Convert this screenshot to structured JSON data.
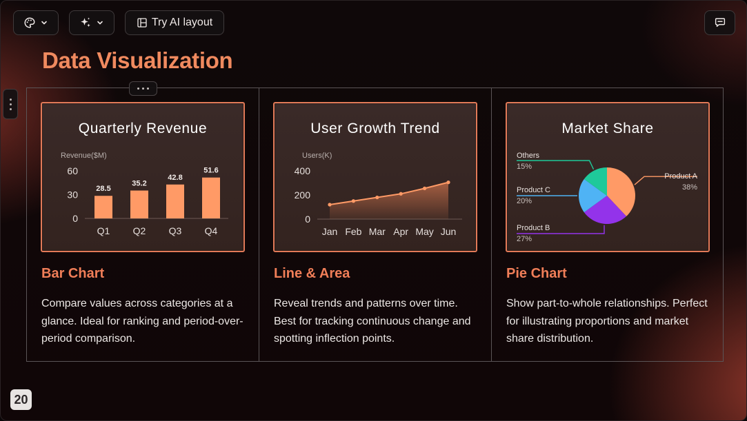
{
  "toolbar": {
    "theme_icon": "palette-icon",
    "magic_icon": "sparkle-icon",
    "ai_layout_label": "Try AI layout",
    "comments_icon": "comment-icon"
  },
  "slide": {
    "title": "Data Visualization",
    "page_number": "20"
  },
  "columns": [
    {
      "heading": "Bar Chart",
      "description": "Compare values across categories at a glance. Ideal for ranking and period-over-period comparison."
    },
    {
      "heading": "Line & Area",
      "description": "Reveal trends and patterns over time. Best for tracking continuous change and spotting inflection points."
    },
    {
      "heading": "Pie Chart",
      "description": "Show part-to-whole relationships. Perfect for illustrating proportions and market share distribution."
    }
  ],
  "colors": {
    "accent": "#f08a5f",
    "bar": "#ff9a66",
    "card_border": "#e27a58",
    "pie_product_a": "#ff9a66",
    "pie_product_b": "#9333ea",
    "pie_product_c": "#4fb3f5",
    "pie_others": "#1fc99a"
  },
  "chart_data": [
    {
      "type": "bar",
      "title": "Quarterly Revenue",
      "ylabel": "Revenue($M)",
      "categories": [
        "Q1",
        "Q2",
        "Q3",
        "Q4"
      ],
      "values": [
        28.5,
        35.2,
        42.8,
        51.6
      ],
      "ylim": [
        0,
        60
      ],
      "yticks": [
        "0",
        "30",
        "60"
      ],
      "data_labels": [
        "28.5",
        "35.2",
        "42.8",
        "51.6"
      ],
      "grid": false
    },
    {
      "type": "area",
      "title": "User Growth Trend",
      "ylabel": "Users(K)",
      "categories": [
        "Jan",
        "Feb",
        "Mar",
        "Apr",
        "May",
        "Jun"
      ],
      "values": [
        120,
        150,
        180,
        210,
        255,
        305
      ],
      "ylim": [
        0,
        400
      ],
      "yticks": [
        "0",
        "200",
        "400"
      ],
      "grid": false
    },
    {
      "type": "pie",
      "title": "Market Share",
      "slices": [
        {
          "name": "Product A",
          "label": "38%",
          "value": 38
        },
        {
          "name": "Product B",
          "label": "27%",
          "value": 27
        },
        {
          "name": "Product C",
          "label": "20%",
          "value": 20
        },
        {
          "name": "Others",
          "label": "15%",
          "value": 15
        }
      ]
    }
  ]
}
